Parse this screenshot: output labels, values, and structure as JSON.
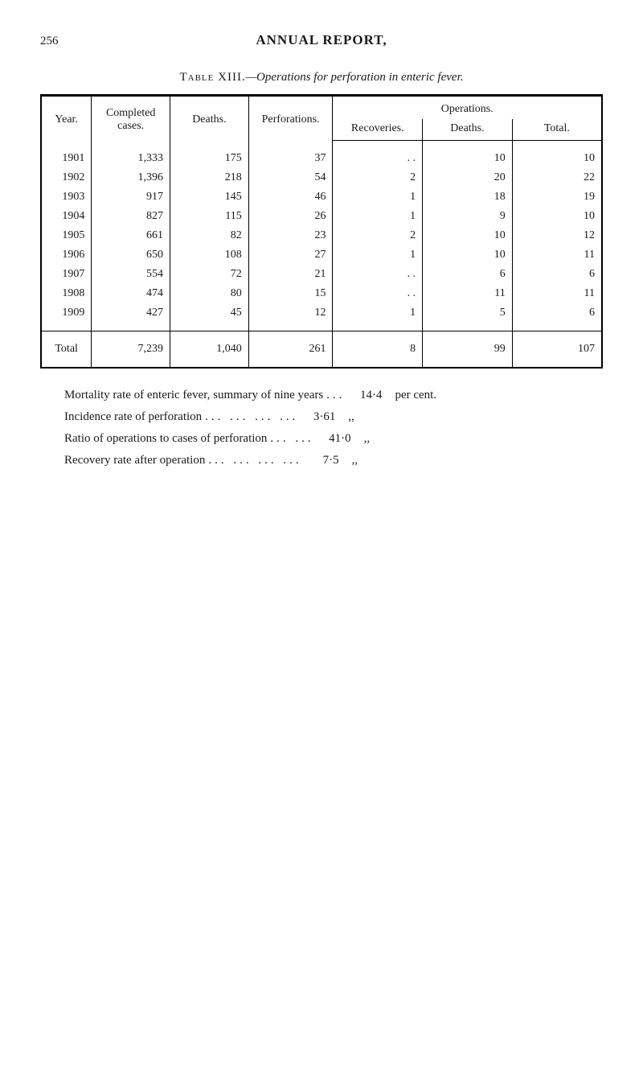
{
  "page_number": "256",
  "main_title": "ANNUAL REPORT,",
  "table_caption_prefix": "Table XIII.",
  "table_caption_suffix": "—Operations for perforation in enteric fever.",
  "headers": {
    "year": "Year.",
    "completed": "Completed cases.",
    "deaths": "Deaths.",
    "perforations": "Perforations.",
    "operations": "Operations.",
    "recoveries": "Recoveries.",
    "op_deaths": "Deaths.",
    "total": "Total."
  },
  "rows": [
    {
      "year": "1901",
      "completed": "1,333",
      "deaths": "175",
      "perforations": "37",
      "recoveries": ". .",
      "op_deaths": "10",
      "total": "10"
    },
    {
      "year": "1902",
      "completed": "1,396",
      "deaths": "218",
      "perforations": "54",
      "recoveries": "2",
      "op_deaths": "20",
      "total": "22"
    },
    {
      "year": "1903",
      "completed": "917",
      "deaths": "145",
      "perforations": "46",
      "recoveries": "1",
      "op_deaths": "18",
      "total": "19"
    },
    {
      "year": "1904",
      "completed": "827",
      "deaths": "115",
      "perforations": "26",
      "recoveries": "1",
      "op_deaths": "9",
      "total": "10"
    },
    {
      "year": "1905",
      "completed": "661",
      "deaths": "82",
      "perforations": "23",
      "recoveries": "2",
      "op_deaths": "10",
      "total": "12"
    },
    {
      "year": "1906",
      "completed": "650",
      "deaths": "108",
      "perforations": "27",
      "recoveries": "1",
      "op_deaths": "10",
      "total": "11"
    },
    {
      "year": "1907",
      "completed": "554",
      "deaths": "72",
      "perforations": "21",
      "recoveries": ". .",
      "op_deaths": "6",
      "total": "6"
    },
    {
      "year": "1908",
      "completed": "474",
      "deaths": "80",
      "perforations": "15",
      "recoveries": ". .",
      "op_deaths": "11",
      "total": "11"
    },
    {
      "year": "1909",
      "completed": "427",
      "deaths": "45",
      "perforations": "12",
      "recoveries": "1",
      "op_deaths": "5",
      "total": "6"
    }
  ],
  "totals": {
    "label": "Total",
    "completed": "7,239",
    "deaths": "1,040",
    "perforations": "261",
    "recoveries": "8",
    "op_deaths": "99",
    "total": "107"
  },
  "summary": [
    {
      "label": "Mortality rate of enteric fever, summary of nine years",
      "dots": "...",
      "value": "14·4",
      "unit": "per cent."
    },
    {
      "label": "Incidence rate of perforation",
      "dots": "...   ...   ...   ...",
      "value": "3·61",
      "unit": ",,"
    },
    {
      "label": "Ratio of operations to cases of perforation",
      "dots": "...   ...",
      "value": "41·0",
      "unit": ",,"
    },
    {
      "label": "Recovery rate after operation",
      "dots": "...   ...   ...   ...",
      "value": "7·5",
      "unit": ",,"
    }
  ]
}
